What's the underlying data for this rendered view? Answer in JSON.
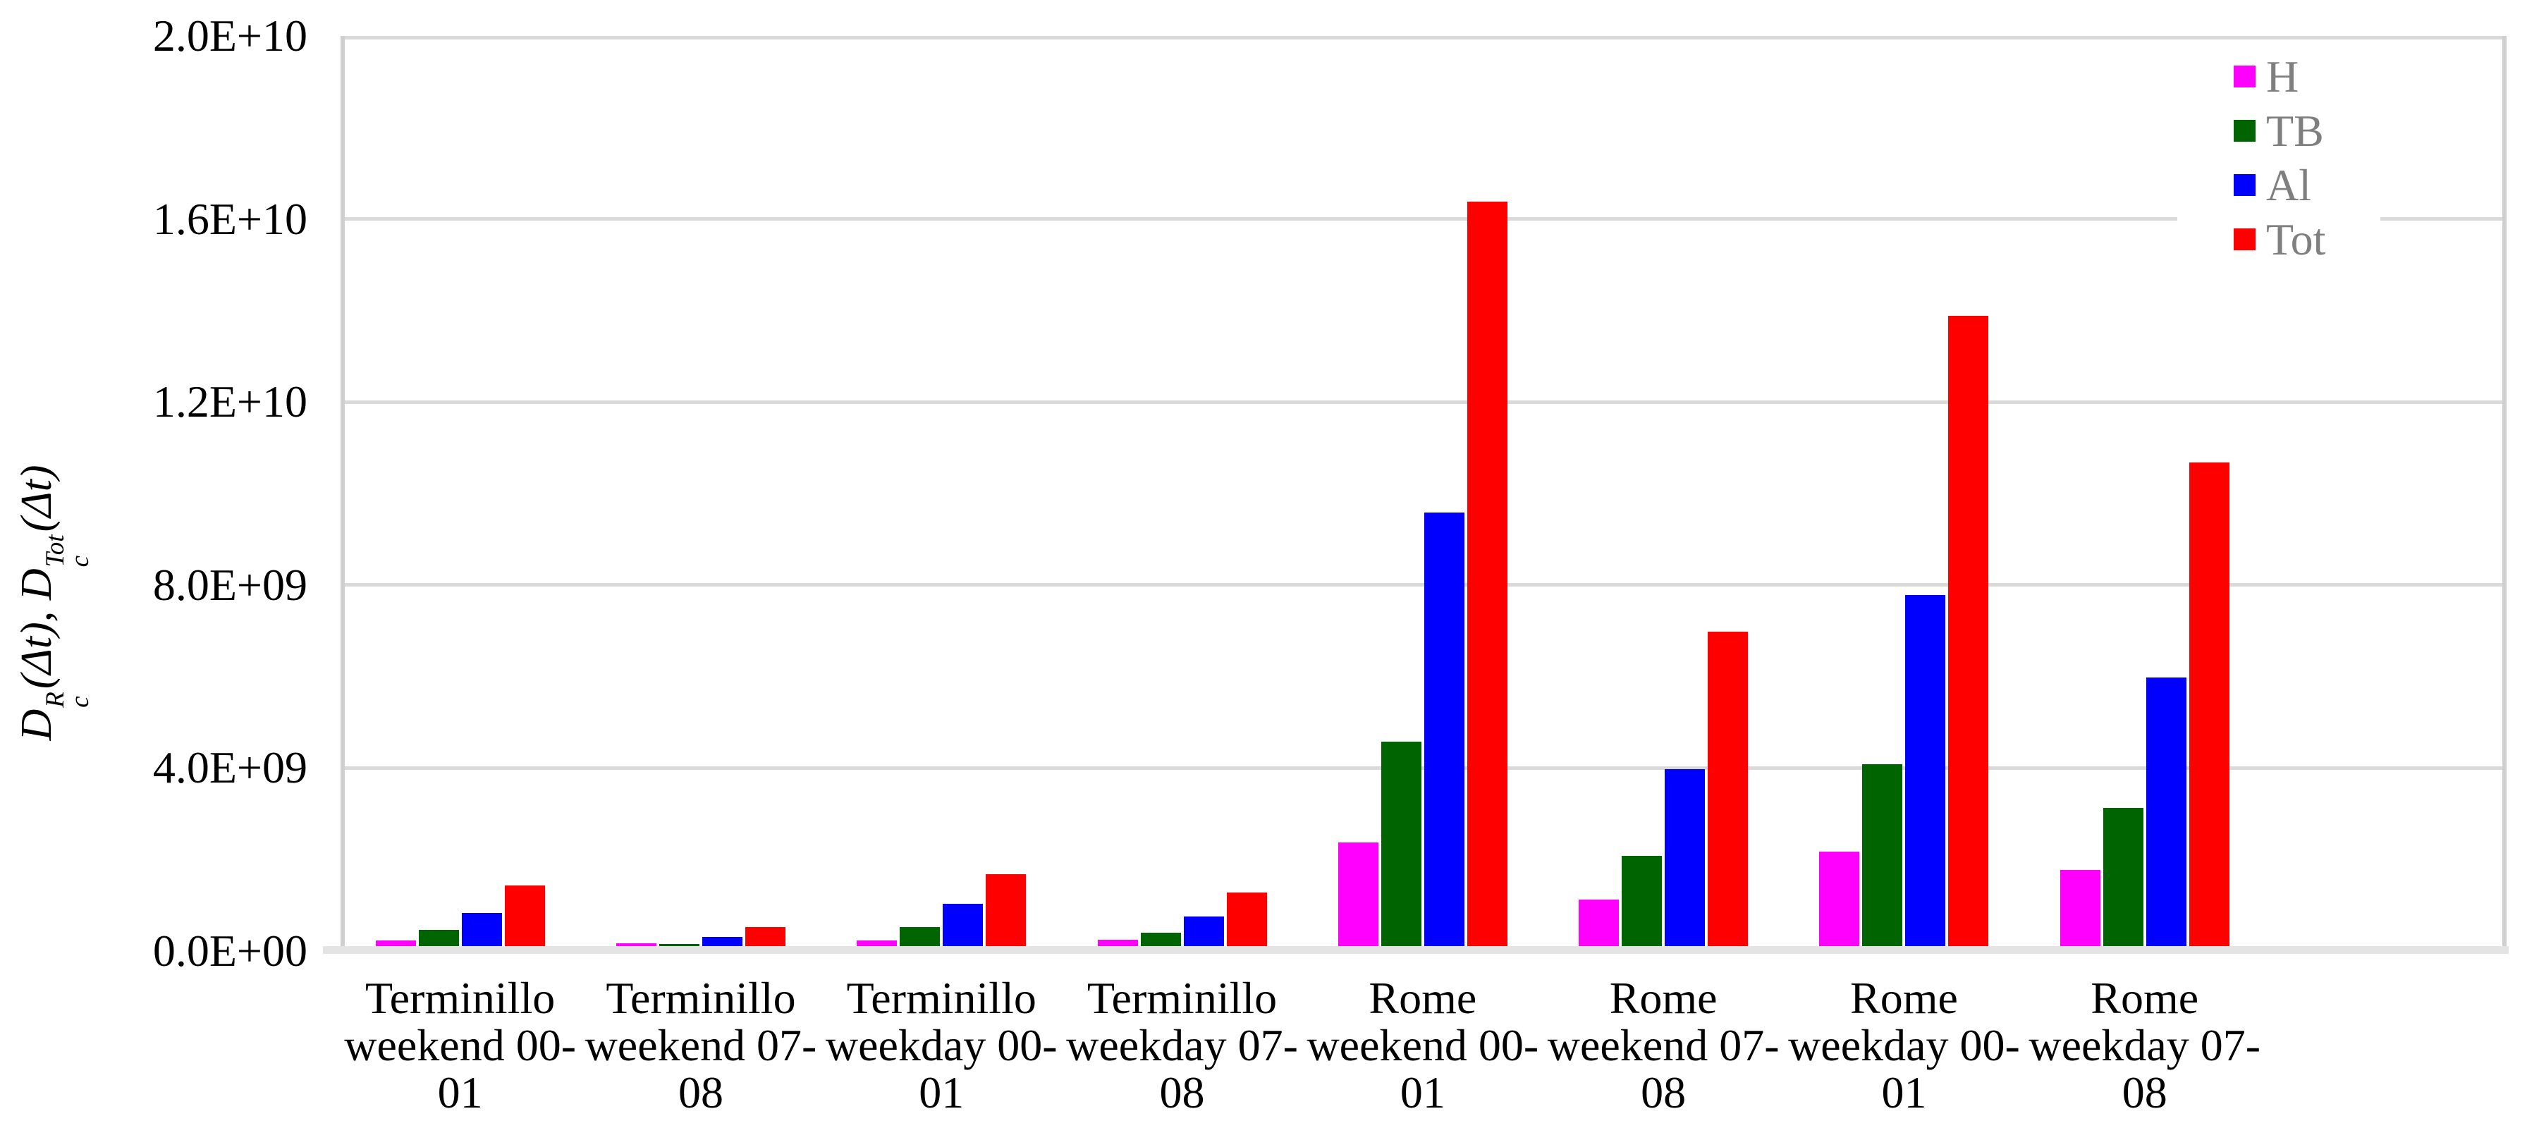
{
  "chart_data": {
    "type": "bar",
    "title": "",
    "xlabel": "",
    "ylabel": "Dc R(Δt), Dc Tot(Δt)",
    "ylabel_segments": [
      {
        "type": "text",
        "text": "D"
      },
      {
        "type": "stack",
        "top": "R",
        "bottom": "c"
      },
      {
        "type": "text",
        "text": "(Δt), "
      },
      {
        "type": "text",
        "text": "D"
      },
      {
        "type": "stack",
        "top": "Tot",
        "bottom": "c"
      },
      {
        "type": "text",
        "text": "(Δt)"
      }
    ],
    "categories": [
      {
        "lines": [
          "Terminillo",
          "weekend 00-",
          "01"
        ]
      },
      {
        "lines": [
          "Terminillo",
          "weekend 07-",
          "08"
        ]
      },
      {
        "lines": [
          "Terminillo",
          "weekday 00-",
          "01"
        ]
      },
      {
        "lines": [
          "Terminillo",
          "weekday 07-",
          "08"
        ]
      },
      {
        "lines": [
          "Rome",
          "weekend 00-",
          "01"
        ]
      },
      {
        "lines": [
          "Rome",
          "weekend 07-",
          "08"
        ]
      },
      {
        "lines": [
          "Rome",
          "weekday 00-",
          "01"
        ]
      },
      {
        "lines": [
          "Rome",
          "weekday 07-",
          "08"
        ]
      }
    ],
    "series": [
      {
        "name": "H",
        "color": "#FF00FF",
        "values": [
          150000000,
          90000000,
          150000000,
          170000000,
          2300000000,
          1050000000,
          2100000000,
          1700000000
        ]
      },
      {
        "name": "TB",
        "color": "#006400",
        "values": [
          380000000,
          80000000,
          450000000,
          330000000,
          4500000000,
          2000000000,
          4000000000,
          3050000000
        ]
      },
      {
        "name": "Al",
        "color": "#0000FF",
        "values": [
          750000000,
          230000000,
          950000000,
          680000000,
          9500000000,
          3900000000,
          7700000000,
          5900000000
        ]
      },
      {
        "name": "Tot",
        "color": "#FF0000",
        "values": [
          1350000000,
          450000000,
          1600000000,
          1200000000,
          16300000000,
          6900000000,
          13800000000,
          10600000000
        ]
      }
    ],
    "ylim": [
      0,
      20000000000
    ],
    "yticks": [
      {
        "label": "0.0E+00",
        "value": 0
      },
      {
        "label": "4.0E+09",
        "value": 4000000000
      },
      {
        "label": "8.0E+09",
        "value": 8000000000
      },
      {
        "label": "1.2E+10",
        "value": 12000000000
      },
      {
        "label": "1.6E+10",
        "value": 16000000000
      },
      {
        "label": "2.0E+10",
        "value": 20000000000
      }
    ],
    "grid": true,
    "legend_position": "top-right"
  },
  "legend": {
    "items": [
      {
        "label": "H",
        "color": "#FF00FF"
      },
      {
        "label": "TB",
        "color": "#006400"
      },
      {
        "label": "Al",
        "color": "#0000FF"
      },
      {
        "label": "Tot",
        "color": "#FF0000"
      }
    ],
    "text_color": "#7F7F7F"
  },
  "colors": {
    "gridline": "#D9D9D9",
    "axis_line": "#CFCFCF",
    "baseline_band": "#E4E4E4",
    "tick_text": "#000000"
  }
}
